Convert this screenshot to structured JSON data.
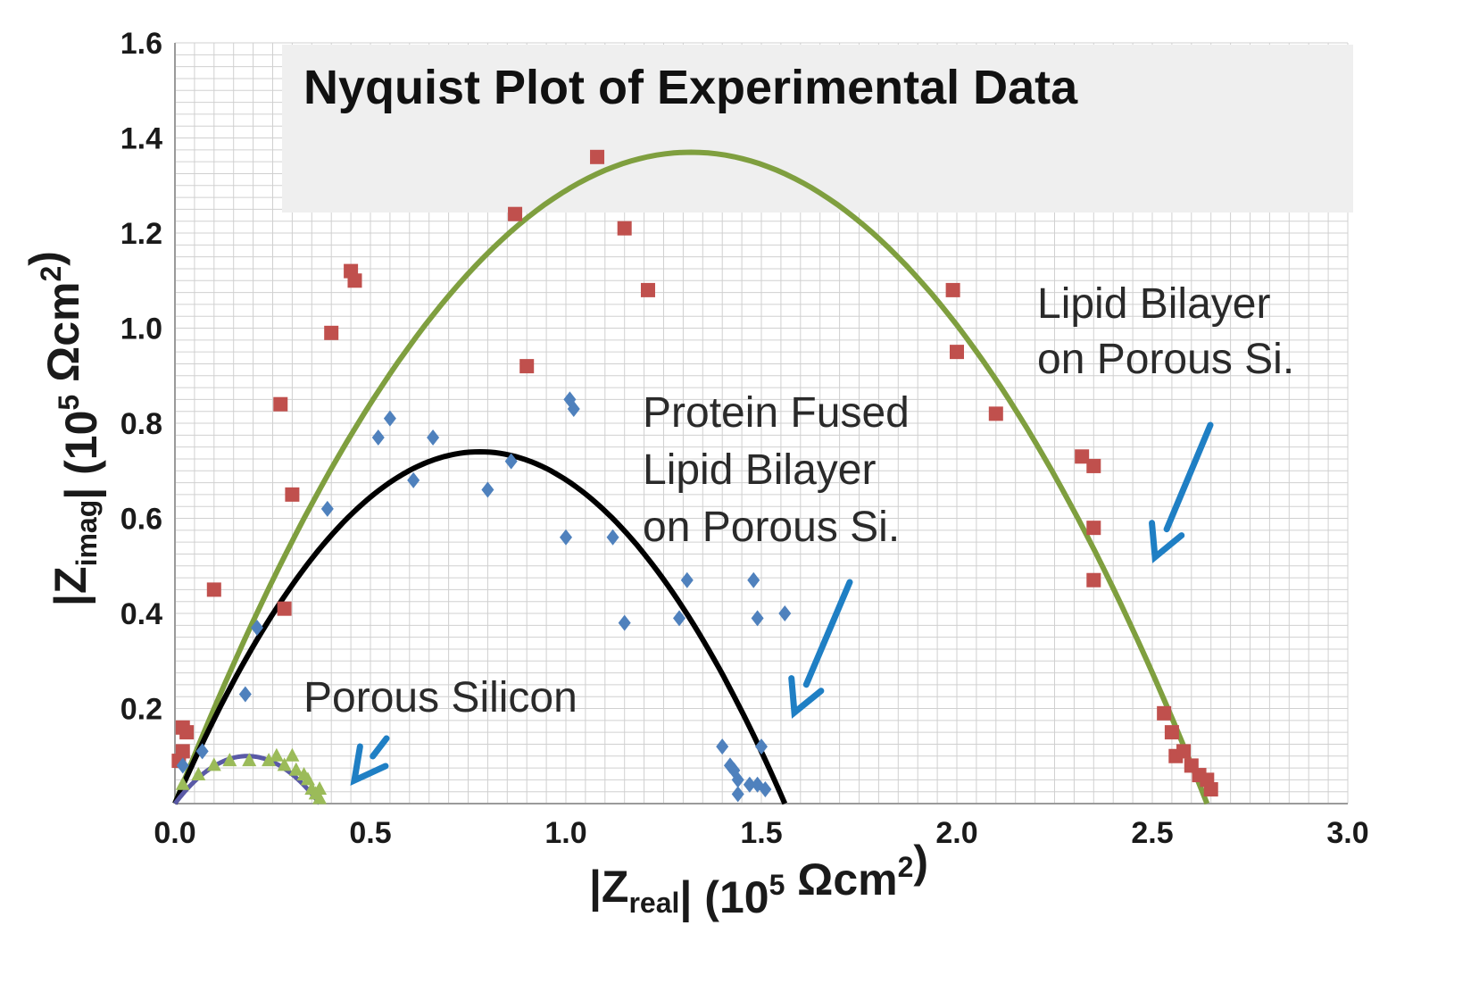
{
  "chart_data": {
    "type": "scatter",
    "title": "Nyquist Plot of Experimental Data",
    "xlabel": {
      "pre": "|Z",
      "sub": "real",
      "mid": "| (10",
      "sup": "5",
      "post": " Ωcm",
      "sup2": "2",
      "end": ")"
    },
    "ylabel": {
      "pre": "|Z",
      "sub": "imag",
      "mid": "| (10",
      "sup": "5",
      "post": " Ωcm",
      "sup2": "2",
      "end": ")"
    },
    "xlim": [
      0,
      3.0
    ],
    "ylim": [
      0,
      1.6
    ],
    "x_ticks": [
      "0.0",
      "0.5",
      "1.0",
      "1.5",
      "2.0",
      "2.5",
      "3.0"
    ],
    "y_ticks": [
      "0.2",
      "0.4",
      "0.6",
      "0.8",
      "1.0",
      "1.2",
      "1.4",
      "1.6"
    ],
    "grid": true,
    "colors": {
      "lipid_markers": "#c0504d",
      "protein_markers": "#4f81bd",
      "porous_markers": "#9bbb59",
      "lipid_fit": "#7f9f3f",
      "protein_fit": "#000000",
      "porous_fit": "#5a5aa6",
      "arrow": "#1f7fc4",
      "grid": "#d0d0d0",
      "title_box": "#efefef"
    },
    "annotations": [
      {
        "id": "lipid",
        "lines": [
          "Lipid Bilayer",
          "on Porous Si."
        ]
      },
      {
        "id": "protein",
        "lines": [
          "Protein Fused",
          "Lipid Bilayer",
          "on Porous Si."
        ]
      },
      {
        "id": "porous",
        "lines": [
          "Porous Silicon"
        ]
      }
    ],
    "series": [
      {
        "marker": "square",
        "values": [
          [
            0.01,
            0.09
          ],
          [
            0.02,
            0.16
          ],
          [
            0.03,
            0.15
          ],
          [
            0.02,
            0.11
          ],
          [
            0.1,
            0.45
          ],
          [
            0.27,
            0.84
          ],
          [
            0.28,
            0.41
          ],
          [
            0.3,
            0.65
          ],
          [
            0.4,
            0.99
          ],
          [
            0.45,
            1.12
          ],
          [
            0.46,
            1.1
          ],
          [
            0.87,
            1.24
          ],
          [
            0.9,
            0.92
          ],
          [
            1.08,
            1.36
          ],
          [
            1.15,
            1.21
          ],
          [
            1.21,
            1.08
          ],
          [
            1.99,
            1.08
          ],
          [
            2.0,
            0.95
          ],
          [
            2.1,
            0.82
          ],
          [
            2.32,
            0.73
          ],
          [
            2.35,
            0.71
          ],
          [
            2.35,
            0.58
          ],
          [
            2.35,
            0.47
          ],
          [
            2.53,
            0.19
          ],
          [
            2.55,
            0.15
          ],
          [
            2.56,
            0.1
          ],
          [
            2.58,
            0.11
          ],
          [
            2.6,
            0.08
          ],
          [
            2.62,
            0.06
          ],
          [
            2.64,
            0.05
          ],
          [
            2.65,
            0.03
          ]
        ]
      },
      {
        "marker": "diamond",
        "values": [
          [
            0.02,
            0.08
          ],
          [
            0.07,
            0.11
          ],
          [
            0.18,
            0.23
          ],
          [
            0.21,
            0.37
          ],
          [
            0.39,
            0.62
          ],
          [
            0.52,
            0.77
          ],
          [
            0.55,
            0.81
          ],
          [
            0.61,
            0.68
          ],
          [
            0.66,
            0.77
          ],
          [
            0.8,
            0.66
          ],
          [
            0.86,
            0.72
          ],
          [
            1.0,
            0.56
          ],
          [
            1.01,
            0.85
          ],
          [
            1.02,
            0.83
          ],
          [
            1.12,
            0.56
          ],
          [
            1.15,
            0.38
          ],
          [
            1.29,
            0.39
          ],
          [
            1.31,
            0.47
          ],
          [
            1.4,
            0.12
          ],
          [
            1.42,
            0.08
          ],
          [
            1.43,
            0.07
          ],
          [
            1.44,
            0.05
          ],
          [
            1.44,
            0.02
          ],
          [
            1.47,
            0.04
          ],
          [
            1.48,
            0.47
          ],
          [
            1.49,
            0.39
          ],
          [
            1.49,
            0.04
          ],
          [
            1.5,
            0.12
          ],
          [
            1.51,
            0.03
          ],
          [
            1.56,
            0.4
          ]
        ]
      },
      {
        "marker": "triangle",
        "values": [
          [
            0.02,
            0.04
          ],
          [
            0.06,
            0.06
          ],
          [
            0.1,
            0.08
          ],
          [
            0.14,
            0.09
          ],
          [
            0.19,
            0.09
          ],
          [
            0.24,
            0.09
          ],
          [
            0.26,
            0.1
          ],
          [
            0.28,
            0.08
          ],
          [
            0.3,
            0.1
          ],
          [
            0.31,
            0.07
          ],
          [
            0.33,
            0.06
          ],
          [
            0.34,
            0.05
          ],
          [
            0.35,
            0.03
          ],
          [
            0.36,
            0.02
          ],
          [
            0.37,
            0.01
          ],
          [
            0.37,
            0.03
          ]
        ]
      }
    ],
    "fits": [
      {
        "id": "lipid",
        "x_start": 0.0,
        "x_end": 2.64,
        "peak": 1.37
      },
      {
        "id": "protein",
        "x_start": 0.0,
        "x_end": 1.56,
        "peak": 0.74
      },
      {
        "id": "porous",
        "x_start": 0.0,
        "x_end": 0.37,
        "peak": 0.1
      }
    ]
  }
}
